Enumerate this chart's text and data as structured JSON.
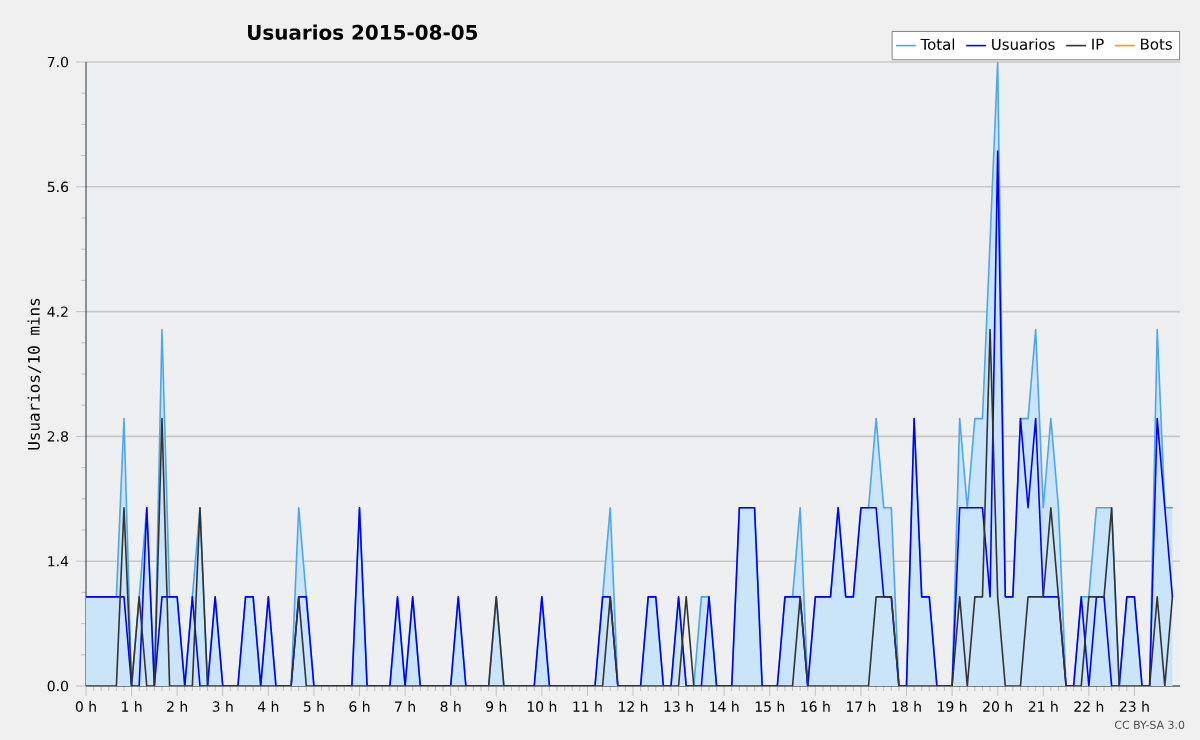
{
  "chart_data": {
    "type": "line",
    "title": "Usuarios  2015-08-05",
    "ylabel": "Usuarios/10 mins",
    "annotations": [
      "CC BY-SA 3.0"
    ],
    "x": [
      "2015-08-05T00:00",
      "2015-08-05T00:10",
      "2015-08-05T00:20",
      "2015-08-05T00:30",
      "2015-08-05T00:40",
      "2015-08-05T00:50",
      "2015-08-05T01:00",
      "2015-08-05T01:10",
      "2015-08-05T01:20",
      "2015-08-05T01:30",
      "2015-08-05T01:40",
      "2015-08-05T01:50",
      "2015-08-05T02:00",
      "2015-08-05T02:10",
      "2015-08-05T02:20",
      "2015-08-05T02:30",
      "2015-08-05T02:40",
      "2015-08-05T02:50",
      "2015-08-05T03:00",
      "2015-08-05T03:10",
      "2015-08-05T03:20",
      "2015-08-05T03:30",
      "2015-08-05T03:40",
      "2015-08-05T03:50",
      "2015-08-05T04:00",
      "2015-08-05T04:10",
      "2015-08-05T04:20",
      "2015-08-05T04:30",
      "2015-08-05T04:40",
      "2015-08-05T04:50",
      "2015-08-05T05:00",
      "2015-08-05T05:10",
      "2015-08-05T05:20",
      "2015-08-05T05:30",
      "2015-08-05T05:40",
      "2015-08-05T05:50",
      "2015-08-05T06:00",
      "2015-08-05T06:10",
      "2015-08-05T06:20",
      "2015-08-05T06:30",
      "2015-08-05T06:40",
      "2015-08-05T06:50",
      "2015-08-05T07:00",
      "2015-08-05T07:10",
      "2015-08-05T07:20",
      "2015-08-05T07:30",
      "2015-08-05T07:40",
      "2015-08-05T07:50",
      "2015-08-05T08:00",
      "2015-08-05T08:10",
      "2015-08-05T08:20",
      "2015-08-05T08:30",
      "2015-08-05T08:40",
      "2015-08-05T08:50",
      "2015-08-05T09:00",
      "2015-08-05T09:10",
      "2015-08-05T09:20",
      "2015-08-05T09:30",
      "2015-08-05T09:40",
      "2015-08-05T09:50",
      "2015-08-05T10:00",
      "2015-08-05T10:10",
      "2015-08-05T10:20",
      "2015-08-05T10:30",
      "2015-08-05T10:40",
      "2015-08-05T10:50",
      "2015-08-05T11:00",
      "2015-08-05T11:10",
      "2015-08-05T11:20",
      "2015-08-05T11:30",
      "2015-08-05T11:40",
      "2015-08-05T11:50",
      "2015-08-05T12:00",
      "2015-08-05T12:10",
      "2015-08-05T12:20",
      "2015-08-05T12:30",
      "2015-08-05T12:40",
      "2015-08-05T12:50",
      "2015-08-05T13:00",
      "2015-08-05T13:10",
      "2015-08-05T13:20",
      "2015-08-05T13:30",
      "2015-08-05T13:40",
      "2015-08-05T13:50",
      "2015-08-05T14:00",
      "2015-08-05T14:10",
      "2015-08-05T14:20",
      "2015-08-05T14:30",
      "2015-08-05T14:40",
      "2015-08-05T14:50",
      "2015-08-05T15:00",
      "2015-08-05T15:10",
      "2015-08-05T15:20",
      "2015-08-05T15:30",
      "2015-08-05T15:40",
      "2015-08-05T15:50",
      "2015-08-05T16:00",
      "2015-08-05T16:10",
      "2015-08-05T16:20",
      "2015-08-05T16:30",
      "2015-08-05T16:40",
      "2015-08-05T16:50",
      "2015-08-05T17:00",
      "2015-08-05T17:10",
      "2015-08-05T17:20",
      "2015-08-05T17:30",
      "2015-08-05T17:40",
      "2015-08-05T17:50",
      "2015-08-05T18:00",
      "2015-08-05T18:10",
      "2015-08-05T18:20",
      "2015-08-05T18:30",
      "2015-08-05T18:40",
      "2015-08-05T18:50",
      "2015-08-05T19:00",
      "2015-08-05T19:10",
      "2015-08-05T19:20",
      "2015-08-05T19:30",
      "2015-08-05T19:40",
      "2015-08-05T19:50",
      "2015-08-05T20:00",
      "2015-08-05T20:10",
      "2015-08-05T20:20",
      "2015-08-05T20:30",
      "2015-08-05T20:40",
      "2015-08-05T20:50",
      "2015-08-05T21:00",
      "2015-08-05T21:10",
      "2015-08-05T21:20",
      "2015-08-05T21:30",
      "2015-08-05T21:40",
      "2015-08-05T21:50",
      "2015-08-05T22:00",
      "2015-08-05T22:10",
      "2015-08-05T22:20",
      "2015-08-05T22:30",
      "2015-08-05T22:40",
      "2015-08-05T22:50",
      "2015-08-05T23:00",
      "2015-08-05T23:10",
      "2015-08-05T23:20",
      "2015-08-05T23:30",
      "2015-08-05T23:40",
      "2015-08-05T23:50"
    ],
    "series": [
      {
        "name": "Total",
        "type": "area",
        "color": "#4da6f0",
        "values": [
          1,
          1,
          1,
          1,
          1,
          3,
          0,
          1,
          2,
          0,
          4,
          1,
          1,
          0,
          1,
          2,
          0,
          1,
          0,
          0,
          0,
          1,
          1,
          0,
          1,
          0,
          0,
          0,
          2,
          1,
          0,
          0,
          0,
          0,
          0,
          0,
          2,
          0,
          0,
          0,
          0,
          1,
          0,
          1,
          0,
          0,
          0,
          0,
          0,
          1,
          0,
          0,
          0,
          0,
          1,
          0,
          0,
          0,
          0,
          0,
          1,
          0,
          0,
          0,
          0,
          0,
          0,
          0,
          1,
          2,
          0,
          0,
          0,
          0,
          1,
          1,
          0,
          0,
          1,
          0,
          0,
          1,
          1,
          0,
          0,
          0,
          2,
          2,
          2,
          0,
          0,
          0,
          1,
          1,
          2,
          0,
          1,
          1,
          1,
          2,
          1,
          1,
          2,
          2,
          3,
          2,
          2,
          0,
          0,
          3,
          1,
          1,
          0,
          0,
          0,
          3,
          2,
          3,
          3,
          5,
          7,
          1,
          1,
          3,
          3,
          4,
          2,
          3,
          2,
          0,
          0,
          1,
          1,
          2,
          2,
          2,
          0,
          1,
          1,
          0,
          0,
          4,
          2,
          2
        ]
      },
      {
        "name": "Usuarios",
        "color": "#0000ff",
        "values": [
          1,
          1,
          1,
          1,
          1,
          1,
          0,
          0,
          2,
          0,
          1,
          1,
          1,
          0,
          1,
          0,
          0,
          1,
          0,
          0,
          0,
          1,
          1,
          0,
          1,
          0,
          0,
          0,
          1,
          1,
          0,
          0,
          0,
          0,
          0,
          0,
          2,
          0,
          0,
          0,
          0,
          1,
          0,
          1,
          0,
          0,
          0,
          0,
          0,
          1,
          0,
          0,
          0,
          0,
          0,
          0,
          0,
          0,
          0,
          0,
          1,
          0,
          0,
          0,
          0,
          0,
          0,
          0,
          1,
          1,
          0,
          0,
          0,
          0,
          1,
          1,
          0,
          0,
          1,
          0,
          0,
          0,
          1,
          0,
          0,
          0,
          2,
          2,
          2,
          0,
          0,
          0,
          1,
          1,
          1,
          0,
          1,
          1,
          1,
          2,
          1,
          1,
          2,
          2,
          2,
          1,
          1,
          0,
          0,
          3,
          1,
          1,
          0,
          0,
          0,
          2,
          2,
          2,
          2,
          1,
          6,
          1,
          1,
          3,
          2,
          3,
          1,
          1,
          1,
          0,
          0,
          1,
          0,
          1,
          1,
          0,
          0,
          1,
          1,
          0,
          0,
          3,
          2,
          1
        ]
      },
      {
        "name": "IP",
        "color": "#333333",
        "values": [
          0,
          0,
          0,
          0,
          0,
          2,
          0,
          1,
          0,
          0,
          3,
          0,
          0,
          0,
          0,
          2,
          0,
          0,
          0,
          0,
          0,
          0,
          0,
          0,
          0,
          0,
          0,
          0,
          1,
          0,
          0,
          0,
          0,
          0,
          0,
          0,
          0,
          0,
          0,
          0,
          0,
          0,
          0,
          0,
          0,
          0,
          0,
          0,
          0,
          0,
          0,
          0,
          0,
          0,
          1,
          0,
          0,
          0,
          0,
          0,
          0,
          0,
          0,
          0,
          0,
          0,
          0,
          0,
          0,
          1,
          0,
          0,
          0,
          0,
          0,
          0,
          0,
          0,
          0,
          1,
          0,
          0,
          0,
          0,
          0,
          0,
          0,
          0,
          0,
          0,
          0,
          0,
          0,
          0,
          1,
          0,
          0,
          0,
          0,
          0,
          0,
          0,
          0,
          0,
          1,
          1,
          1,
          0,
          0,
          0,
          0,
          0,
          0,
          0,
          0,
          1,
          0,
          1,
          1,
          4,
          1,
          0,
          0,
          0,
          1,
          1,
          1,
          2,
          1,
          0,
          0,
          0,
          1,
          1,
          1,
          2,
          0,
          0,
          0,
          0,
          0,
          1,
          0,
          1
        ]
      },
      {
        "name": "Bots",
        "color": "#ff9900",
        "values": [
          null,
          null,
          null,
          null,
          null,
          null,
          null,
          null,
          null,
          null,
          null,
          null,
          null,
          null,
          null,
          null,
          null,
          null,
          null,
          null,
          null,
          null,
          null,
          null,
          null,
          null,
          null,
          null,
          null,
          null,
          null,
          null,
          null,
          null,
          null,
          null,
          null,
          null,
          null,
          null,
          null,
          null,
          null,
          null,
          null,
          null,
          null,
          null,
          null,
          null,
          null,
          null,
          null,
          null,
          null,
          null,
          null,
          null,
          null,
          null,
          null,
          null,
          null,
          null,
          null,
          null,
          null,
          null,
          null,
          null,
          null,
          null,
          null,
          null,
          null,
          null,
          null,
          null,
          null,
          null,
          null,
          null,
          null,
          null,
          null,
          null,
          null,
          null,
          null,
          null,
          null,
          null,
          null,
          null,
          null,
          null,
          null,
          null,
          null,
          null,
          null,
          null,
          null,
          null,
          null,
          null,
          null,
          null,
          null,
          null,
          null,
          null,
          null,
          null,
          null,
          null,
          null,
          null,
          null,
          null,
          null,
          null,
          null,
          null,
          null,
          null,
          null,
          null,
          null,
          null,
          null,
          null,
          null,
          null,
          null,
          null,
          null,
          null,
          null,
          null,
          null,
          null,
          null,
          null
        ]
      }
    ],
    "xlim": [
      "2015-08-05T00:00",
      "2015-08-06T00:00"
    ],
    "xticks": [
      {
        "value": "2015-08-05T00:00",
        "label": "0 h"
      },
      {
        "value": "2015-08-05T01:00",
        "label": "1 h"
      },
      {
        "value": "2015-08-05T02:00",
        "label": "2 h"
      },
      {
        "value": "2015-08-05T03:00",
        "label": "3 h"
      },
      {
        "value": "2015-08-05T04:00",
        "label": "4 h"
      },
      {
        "value": "2015-08-05T05:00",
        "label": "5 h"
      },
      {
        "value": "2015-08-05T06:00",
        "label": "6 h"
      },
      {
        "value": "2015-08-05T07:00",
        "label": "7 h"
      },
      {
        "value": "2015-08-05T08:00",
        "label": "8 h"
      },
      {
        "value": "2015-08-05T09:00",
        "label": "9 h"
      },
      {
        "value": "2015-08-05T10:00",
        "label": "10 h"
      },
      {
        "value": "2015-08-05T11:00",
        "label": "11 h"
      },
      {
        "value": "2015-08-05T12:00",
        "label": "12 h"
      },
      {
        "value": "2015-08-05T13:00",
        "label": "13 h"
      },
      {
        "value": "2015-08-05T14:00",
        "label": "14 h"
      },
      {
        "value": "2015-08-05T15:00",
        "label": "15 h"
      },
      {
        "value": "2015-08-05T16:00",
        "label": "16 h"
      },
      {
        "value": "2015-08-05T17:00",
        "label": "17 h"
      },
      {
        "value": "2015-08-05T18:00",
        "label": "18 h"
      },
      {
        "value": "2015-08-05T19:00",
        "label": "19 h"
      },
      {
        "value": "2015-08-05T20:00",
        "label": "20 h"
      },
      {
        "value": "2015-08-05T21:00",
        "label": "21 h"
      },
      {
        "value": "2015-08-05T22:00",
        "label": "22 h"
      },
      {
        "value": "2015-08-05T23:00",
        "label": "23 h"
      }
    ],
    "ylim": [
      0,
      7
    ],
    "yticks": [
      {
        "value": 0,
        "label": "0.0"
      },
      1.4,
      2.8,
      4.2,
      5.6,
      {
        "value": 7,
        "label": "7.0"
      }
    ],
    "grid": "y",
    "legend": "top right"
  }
}
